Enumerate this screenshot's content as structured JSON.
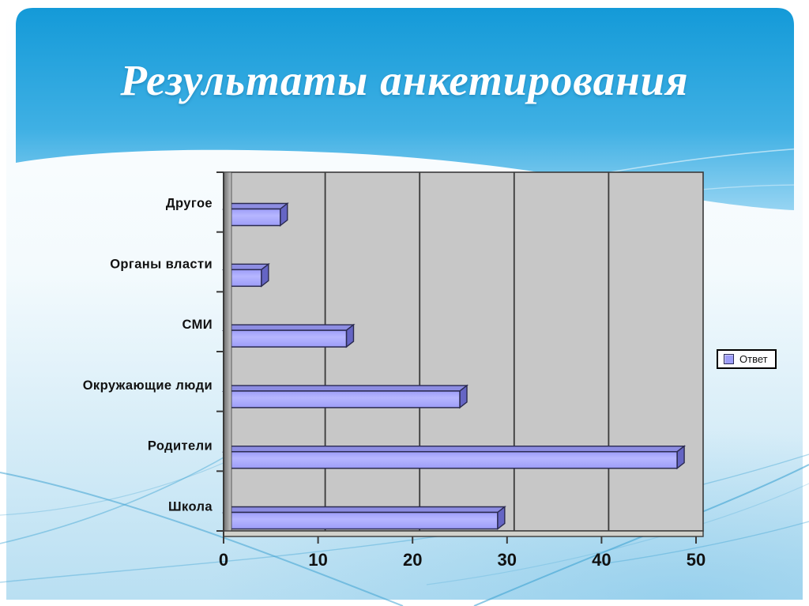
{
  "slide": {
    "title": "Результаты анкетирования"
  },
  "chart_data": {
    "type": "bar",
    "orientation": "horizontal",
    "style": "3d-horizontal-bar",
    "title": "",
    "categories": [
      "Другое",
      "Органы власти",
      "СМИ",
      "Окружающие люди",
      "Родители",
      "Школа"
    ],
    "series": [
      {
        "name": "Ответ",
        "values": [
          6,
          4,
          13,
          25,
          48,
          29
        ]
      }
    ],
    "xlim": [
      0,
      50
    ],
    "x_ticks": [
      0,
      10,
      20,
      30,
      40,
      50
    ],
    "grid": true,
    "legend_position": "right"
  },
  "legend": {
    "items": [
      {
        "label": "Ответ",
        "marker_color": "#9d9df8"
      }
    ]
  },
  "colors": {
    "title_text": "#ffffff",
    "header_top": "#149ad8",
    "header_mid": "#3fb0e4",
    "header_bottom": "#96d4f2",
    "page_top": "#ffffff",
    "page_bottom": "#b9dff2",
    "curve_stroke": "#3fa3d2",
    "plot_bg": "#c7c7c7",
    "wall_dark": "#6e6e6e",
    "floor": "#d2d2cc",
    "grid_line": "#3a3a3a",
    "bar_fill": "#9d9df8",
    "bar_fill_light": "#b6b6ff",
    "bar_top": "#8d8de2",
    "bar_end": "#6565c4",
    "bar_edge": "#2a2a50",
    "axis_text": "#111111"
  }
}
